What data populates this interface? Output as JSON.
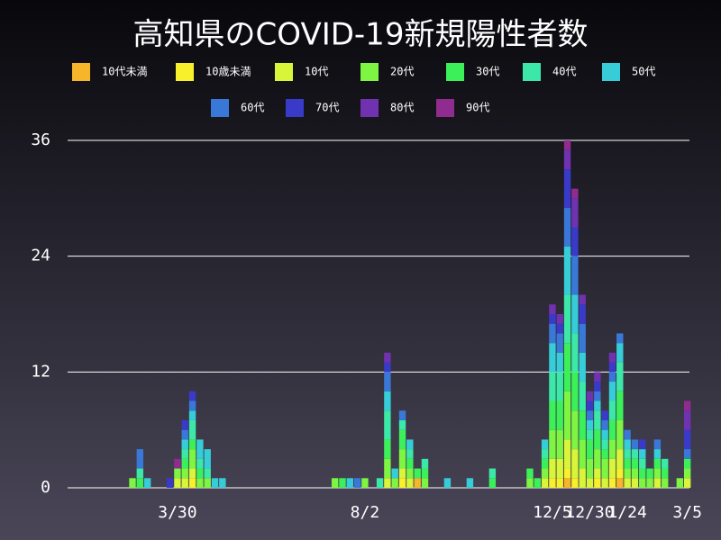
{
  "chart_data": {
    "type": "bar",
    "stacked": true,
    "title": "高知県のCOVID-19新規陽性者数",
    "categories": [
      null,
      null,
      null,
      null,
      null,
      null,
      "3/30",
      null,
      null,
      null,
      null,
      null,
      null,
      null,
      null,
      null,
      null,
      null,
      null,
      null,
      null,
      null,
      null,
      null,
      null,
      null,
      null,
      null,
      null,
      null,
      null,
      "8/2",
      null,
      null,
      null,
      null,
      null,
      null,
      null,
      null,
      null,
      null,
      null,
      null,
      null,
      null,
      null,
      null,
      null,
      null,
      null,
      null,
      null,
      null,
      null,
      null,
      "12/5",
      null,
      null,
      null,
      null,
      "12/30",
      null,
      null,
      null,
      null,
      "1/24",
      null,
      null,
      null,
      null,
      null,
      null,
      null,
      "3/5"
    ],
    "ylim": [
      0,
      36
    ],
    "yticks": [
      0,
      12,
      24,
      36
    ],
    "grid": true,
    "series": [
      {
        "name": "10代未満",
        "color": "#f7b52c",
        "values": [
          0,
          0,
          0,
          0,
          0,
          0,
          0,
          0,
          0,
          0,
          0,
          0,
          0,
          0,
          0,
          0,
          0,
          0,
          0,
          0,
          0,
          0,
          0,
          0,
          0,
          0,
          0,
          0,
          0,
          0,
          0,
          0,
          0,
          0,
          0,
          0,
          0,
          0,
          1,
          0,
          0,
          0,
          0,
          0,
          0,
          0,
          0,
          0,
          0,
          0,
          0,
          0,
          0,
          0,
          0,
          0,
          0,
          0,
          1,
          0,
          0,
          0,
          0,
          0,
          0,
          1,
          0,
          0,
          0,
          0,
          0,
          0,
          0,
          0,
          0
        ]
      },
      {
        "name": "10歳未満",
        "color": "#f7f02a",
        "values": [
          0,
          0,
          0,
          0,
          0,
          0,
          0,
          0,
          1,
          0,
          0,
          0,
          0,
          0,
          0,
          0,
          0,
          0,
          0,
          0,
          0,
          0,
          0,
          0,
          0,
          0,
          0,
          0,
          0,
          0,
          0,
          0,
          0,
          0,
          0,
          0,
          1,
          0,
          0,
          0,
          0,
          0,
          0,
          0,
          0,
          0,
          0,
          0,
          0,
          0,
          0,
          0,
          0,
          0,
          0,
          0,
          1,
          1,
          1,
          1,
          0,
          0,
          1,
          0,
          1,
          1,
          0,
          0,
          0,
          0,
          0,
          0,
          0,
          0,
          0
        ]
      },
      {
        "name": "10代",
        "color": "#d8f53a",
        "values": [
          0,
          0,
          0,
          0,
          0,
          0,
          1,
          1,
          1,
          0,
          0,
          0,
          0,
          0,
          0,
          0,
          0,
          0,
          0,
          0,
          0,
          0,
          0,
          0,
          0,
          0,
          0,
          0,
          0,
          0,
          0,
          0,
          0,
          0,
          1,
          0,
          1,
          1,
          0,
          0,
          0,
          0,
          0,
          0,
          0,
          0,
          0,
          0,
          0,
          0,
          0,
          0,
          0,
          0,
          0,
          1,
          2,
          2,
          3,
          3,
          2,
          1,
          1,
          1,
          2,
          2,
          1,
          1,
          0,
          0,
          1,
          0,
          0,
          0,
          1
        ]
      },
      {
        "name": "20代",
        "color": "#7ef542",
        "values": [
          1,
          0,
          0,
          0,
          0,
          0,
          1,
          1,
          2,
          1,
          1,
          0,
          0,
          0,
          0,
          0,
          0,
          0,
          0,
          0,
          0,
          0,
          0,
          0,
          0,
          0,
          0,
          1,
          0,
          0,
          0,
          1,
          0,
          0,
          2,
          1,
          2,
          1,
          0,
          1,
          0,
          0,
          0,
          0,
          0,
          0,
          0,
          0,
          0,
          0,
          0,
          0,
          0,
          1,
          0,
          1,
          3,
          3,
          5,
          4,
          3,
          2,
          2,
          2,
          2,
          3,
          1,
          1,
          1,
          1,
          1,
          1,
          0,
          1,
          1
        ]
      },
      {
        "name": "30代",
        "color": "#3cf05a",
        "values": [
          0,
          1,
          0,
          0,
          0,
          0,
          0,
          1,
          1,
          1,
          0,
          0,
          0,
          0,
          0,
          0,
          0,
          0,
          0,
          0,
          0,
          0,
          0,
          0,
          0,
          0,
          0,
          0,
          1,
          0,
          0,
          0,
          0,
          0,
          2,
          0,
          2,
          1,
          1,
          1,
          0,
          0,
          0,
          0,
          0,
          0,
          0,
          0,
          1,
          0,
          0,
          0,
          0,
          1,
          1,
          1,
          3,
          3,
          5,
          4,
          3,
          2,
          2,
          1,
          2,
          3,
          1,
          1,
          1,
          1,
          1,
          1,
          0,
          0,
          1
        ]
      },
      {
        "name": "40代",
        "color": "#3ce8a8",
        "values": [
          0,
          1,
          0,
          0,
          0,
          0,
          0,
          1,
          2,
          1,
          1,
          0,
          0,
          0,
          0,
          0,
          0,
          0,
          0,
          0,
          0,
          0,
          0,
          0,
          0,
          0,
          0,
          0,
          0,
          0,
          0,
          0,
          0,
          1,
          3,
          0,
          1,
          1,
          0,
          1,
          0,
          0,
          0,
          0,
          0,
          0,
          0,
          0,
          1,
          0,
          0,
          0,
          0,
          0,
          0,
          1,
          3,
          3,
          5,
          4,
          3,
          1,
          2,
          1,
          2,
          3,
          1,
          1,
          1,
          0,
          0,
          1,
          0,
          0,
          0
        ]
      },
      {
        "name": "50代",
        "color": "#36ccd8",
        "values": [
          0,
          0,
          1,
          0,
          0,
          0,
          0,
          1,
          1,
          2,
          2,
          1,
          1,
          0,
          0,
          0,
          0,
          0,
          0,
          0,
          0,
          0,
          0,
          0,
          0,
          0,
          0,
          0,
          0,
          1,
          0,
          0,
          0,
          0,
          2,
          1,
          0,
          1,
          0,
          0,
          0,
          0,
          1,
          0,
          0,
          1,
          0,
          0,
          0,
          0,
          0,
          0,
          0,
          0,
          0,
          1,
          3,
          2,
          5,
          4,
          3,
          1,
          1,
          1,
          2,
          2,
          1,
          0,
          1,
          0,
          1,
          0,
          0,
          0,
          0
        ]
      },
      {
        "name": "60代",
        "color": "#3a78d8",
        "values": [
          0,
          2,
          0,
          0,
          0,
          0,
          0,
          1,
          1,
          0,
          0,
          0,
          0,
          0,
          0,
          0,
          0,
          0,
          0,
          0,
          0,
          0,
          0,
          0,
          0,
          0,
          0,
          0,
          0,
          0,
          1,
          0,
          0,
          0,
          2,
          0,
          1,
          0,
          0,
          0,
          0,
          0,
          0,
          0,
          0,
          0,
          0,
          0,
          0,
          0,
          0,
          0,
          0,
          0,
          0,
          0,
          2,
          2,
          4,
          4,
          3,
          1,
          1,
          1,
          1,
          1,
          1,
          1,
          0,
          0,
          1,
          0,
          0,
          0,
          1
        ]
      },
      {
        "name": "70代",
        "color": "#3a3ac8",
        "values": [
          0,
          0,
          0,
          0,
          0,
          1,
          0,
          1,
          1,
          0,
          0,
          0,
          0,
          0,
          0,
          0,
          0,
          0,
          0,
          0,
          0,
          0,
          0,
          0,
          0,
          0,
          0,
          0,
          0,
          0,
          0,
          0,
          0,
          0,
          1,
          0,
          0,
          0,
          0,
          0,
          0,
          0,
          0,
          0,
          0,
          0,
          0,
          0,
          0,
          0,
          0,
          0,
          0,
          0,
          0,
          0,
          1,
          1,
          4,
          3,
          2,
          1,
          1,
          1,
          1,
          0,
          0,
          0,
          1,
          0,
          0,
          0,
          0,
          0,
          2
        ]
      },
      {
        "name": "80代",
        "color": "#7032b0",
        "values": [
          0,
          0,
          0,
          0,
          0,
          0,
          0,
          0,
          0,
          0,
          0,
          0,
          0,
          0,
          0,
          0,
          0,
          0,
          0,
          0,
          0,
          0,
          0,
          0,
          0,
          0,
          0,
          0,
          0,
          0,
          0,
          0,
          0,
          0,
          1,
          0,
          0,
          0,
          0,
          0,
          0,
          0,
          0,
          0,
          0,
          0,
          0,
          0,
          0,
          0,
          0,
          0,
          0,
          0,
          0,
          0,
          1,
          1,
          2,
          3,
          1,
          1,
          1,
          0,
          1,
          0,
          0,
          0,
          0,
          0,
          0,
          0,
          0,
          0,
          2
        ]
      },
      {
        "name": "90代",
        "color": "#902c90",
        "values": [
          0,
          0,
          0,
          0,
          0,
          0,
          1,
          0,
          0,
          0,
          0,
          0,
          0,
          0,
          0,
          0,
          0,
          0,
          0,
          0,
          0,
          0,
          0,
          0,
          0,
          0,
          0,
          0,
          0,
          0,
          0,
          0,
          0,
          0,
          0,
          0,
          0,
          0,
          0,
          0,
          0,
          0,
          0,
          0,
          0,
          0,
          0,
          0,
          0,
          0,
          0,
          0,
          0,
          0,
          0,
          0,
          0,
          0,
          1,
          1,
          0,
          0,
          0,
          0,
          0,
          0,
          0,
          0,
          0,
          0,
          0,
          0,
          0,
          0,
          1
        ]
      }
    ]
  }
}
